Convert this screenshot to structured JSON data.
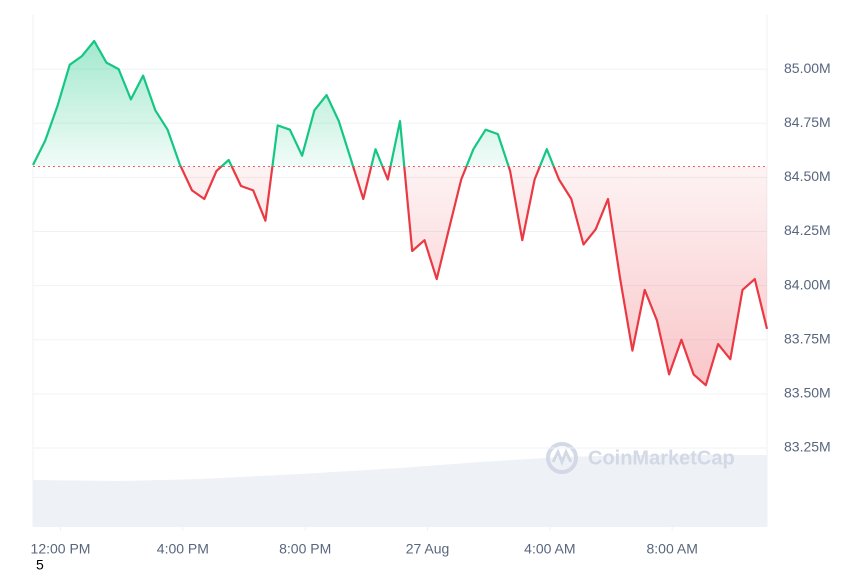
{
  "chart_data": {
    "type": "line",
    "x": [
      -0.9,
      -0.5,
      -0.1,
      0.3,
      0.7,
      1.1,
      1.5,
      1.9,
      2.3,
      2.7,
      3.1,
      3.5,
      3.9,
      4.3,
      4.7,
      5.1,
      5.5,
      5.9,
      6.3,
      6.7,
      7.1,
      7.5,
      7.9,
      8.3,
      8.7,
      9.1,
      9.5,
      9.9,
      10.3,
      10.7,
      11.1,
      11.5,
      11.9,
      12.3,
      12.7,
      13.1,
      13.5,
      13.9,
      14.3,
      14.7,
      15.1,
      15.5,
      15.9,
      16.3,
      16.7,
      17.1,
      17.5,
      17.9,
      18.3,
      18.7,
      19.1,
      19.5,
      19.9,
      20.3,
      20.7,
      21.1,
      21.5,
      21.9,
      22.3,
      22.7,
      23.1
    ],
    "values": [
      84557000,
      84670000,
      84830000,
      85020000,
      85060000,
      85130000,
      85030000,
      85000000,
      84860000,
      84970000,
      84810000,
      84720000,
      84560000,
      84440000,
      84400000,
      84530000,
      84580000,
      84460000,
      84440000,
      84300000,
      84740000,
      84720000,
      84600000,
      84810000,
      84880000,
      84760000,
      84580000,
      84400000,
      84630000,
      84490000,
      84760000,
      84160000,
      84210000,
      84030000,
      84260000,
      84490000,
      84630000,
      84720000,
      84700000,
      84530000,
      84210000,
      84490000,
      84630000,
      84490000,
      84400000,
      84190000,
      84260000,
      84400000,
      84030000,
      83700000,
      83980000,
      83840000,
      83590000,
      83750000,
      83590000,
      83540000,
      83730000,
      83660000,
      83980000,
      84030000,
      83800000
    ],
    "baseline": 84550000,
    "up_color": "#16c784",
    "down_color": "#ea3943",
    "xlim": [
      -0.9,
      23.1
    ],
    "xticks": [
      {
        "value": 0,
        "label": "12:00 PM"
      },
      {
        "value": 4,
        "label": "4:00 PM"
      },
      {
        "value": 8,
        "label": "8:00 PM"
      },
      {
        "value": 12,
        "label": "27 Aug"
      },
      {
        "value": 16,
        "label": "4:00 AM"
      },
      {
        "value": 20,
        "label": "8:00 AM"
      }
    ],
    "ylim": [
      82885000,
      85250000
    ],
    "yticks": [
      {
        "value": 83250000,
        "label": "83.25M"
      },
      {
        "value": 83500000,
        "label": "83.50M"
      },
      {
        "value": 83750000,
        "label": "83.75M"
      },
      {
        "value": 84000000,
        "label": "84.00M"
      },
      {
        "value": 84250000,
        "label": "84.25M"
      },
      {
        "value": 84500000,
        "label": "84.50M"
      },
      {
        "value": 84750000,
        "label": "84.75M"
      },
      {
        "value": 85000000,
        "label": "85.00M"
      }
    ],
    "grid": true,
    "watermark": "CoinMarketCap",
    "footnote": "5"
  }
}
